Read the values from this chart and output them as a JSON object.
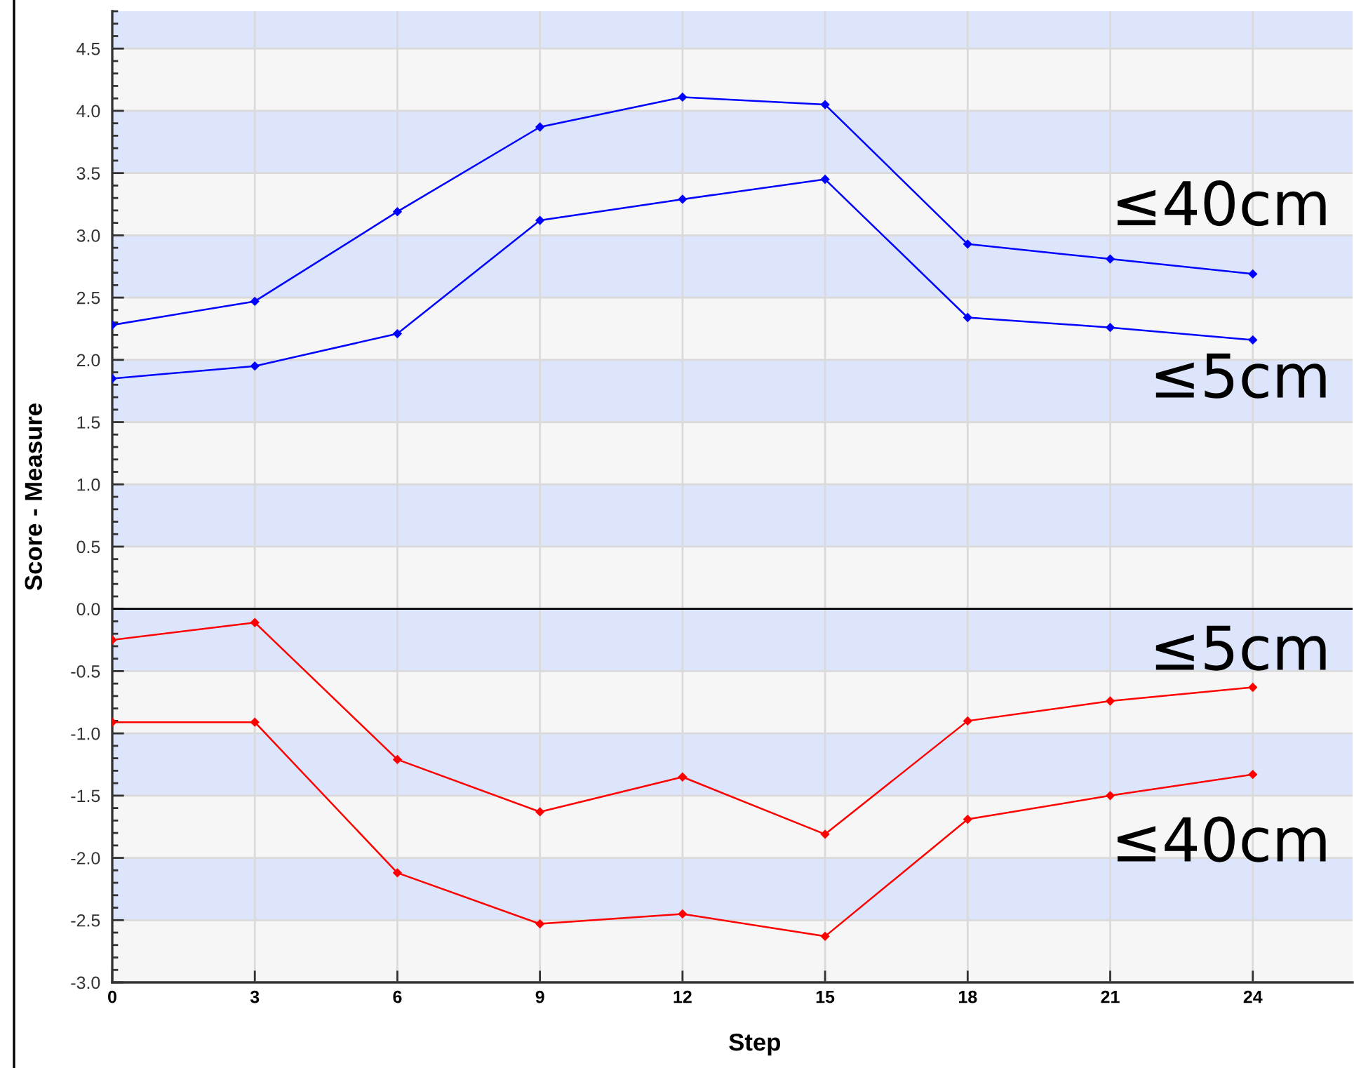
{
  "chart_data": {
    "type": "line",
    "xlabel": "Step",
    "ylabel": "Score - Measure",
    "x": [
      0,
      3,
      6,
      9,
      12,
      15,
      18,
      21,
      24
    ],
    "xlim": [
      0,
      26.1
    ],
    "xticks": [
      0,
      3,
      6,
      9,
      12,
      15,
      18,
      21,
      24
    ],
    "ylim": [
      -3.0,
      4.8
    ],
    "yticks": [
      {
        "value": -3,
        "label": "-3.0"
      },
      {
        "value": -2.5,
        "label": "-2.5"
      },
      {
        "value": -2,
        "label": "-2.0"
      },
      {
        "value": -1.5,
        "label": "-1.5"
      },
      {
        "value": -1,
        "label": "-1.0"
      },
      {
        "value": -0.5,
        "label": "-0.5"
      },
      {
        "value": 0,
        "label": "0.0"
      },
      {
        "value": 0.5,
        "label": "0.5"
      },
      {
        "value": 1,
        "label": "1.0"
      },
      {
        "value": 1.5,
        "label": "1.5"
      },
      {
        "value": 2,
        "label": "2.0"
      },
      {
        "value": 2.5,
        "label": "2.5"
      },
      {
        "value": 3,
        "label": "3.0"
      },
      {
        "value": 3.5,
        "label": "3.5"
      },
      {
        "value": 4,
        "label": "4.0"
      },
      {
        "value": 4.5,
        "label": "4.5"
      }
    ],
    "grid": true,
    "marker": "diamond",
    "line_style": "solid",
    "series": [
      {
        "name": "≤40cm",
        "color": "#0000ff",
        "values": [
          2.28,
          2.47,
          3.19,
          3.87,
          4.11,
          4.05,
          2.93,
          2.81,
          2.69
        ]
      },
      {
        "name": "≤5cm",
        "color": "#0000ff",
        "values": [
          1.85,
          1.95,
          2.21,
          3.12,
          3.29,
          3.45,
          2.34,
          2.26,
          2.16
        ]
      },
      {
        "name": "≤5cm",
        "color": "#ff0000",
        "values": [
          -0.25,
          -0.11,
          -1.21,
          -1.63,
          -1.35,
          -1.81,
          -0.9,
          -0.74,
          -0.63
        ]
      },
      {
        "name": "≤40cm",
        "color": "#ff0000",
        "values": [
          -0.91,
          -0.91,
          -2.12,
          -2.53,
          -2.45,
          -2.63,
          -1.69,
          -1.5,
          -1.33
        ]
      }
    ],
    "ref_lines": [
      {
        "axis": "y",
        "value": 0,
        "color": "#000000"
      }
    ],
    "bands": [
      {
        "axis": "y",
        "from": 4.5,
        "to": 4.8,
        "color": "#dde5fd"
      },
      {
        "axis": "y",
        "from": 3.5,
        "to": 4.0,
        "color": "#dde5fd"
      },
      {
        "axis": "y",
        "from": 2.5,
        "to": 3.0,
        "color": "#dde5fd"
      },
      {
        "axis": "y",
        "from": 1.5,
        "to": 2.0,
        "color": "#dde5fd"
      },
      {
        "axis": "y",
        "from": 0.5,
        "to": 1.0,
        "color": "#dde5fd"
      },
      {
        "axis": "y",
        "from": -0.5,
        "to": 0,
        "color": "#dde5fd"
      },
      {
        "axis": "y",
        "from": -1.5,
        "to": -1.0,
        "color": "#dde5fd"
      },
      {
        "axis": "y",
        "from": -2.5,
        "to": -2.0,
        "color": "#dde5fd"
      }
    ]
  }
}
